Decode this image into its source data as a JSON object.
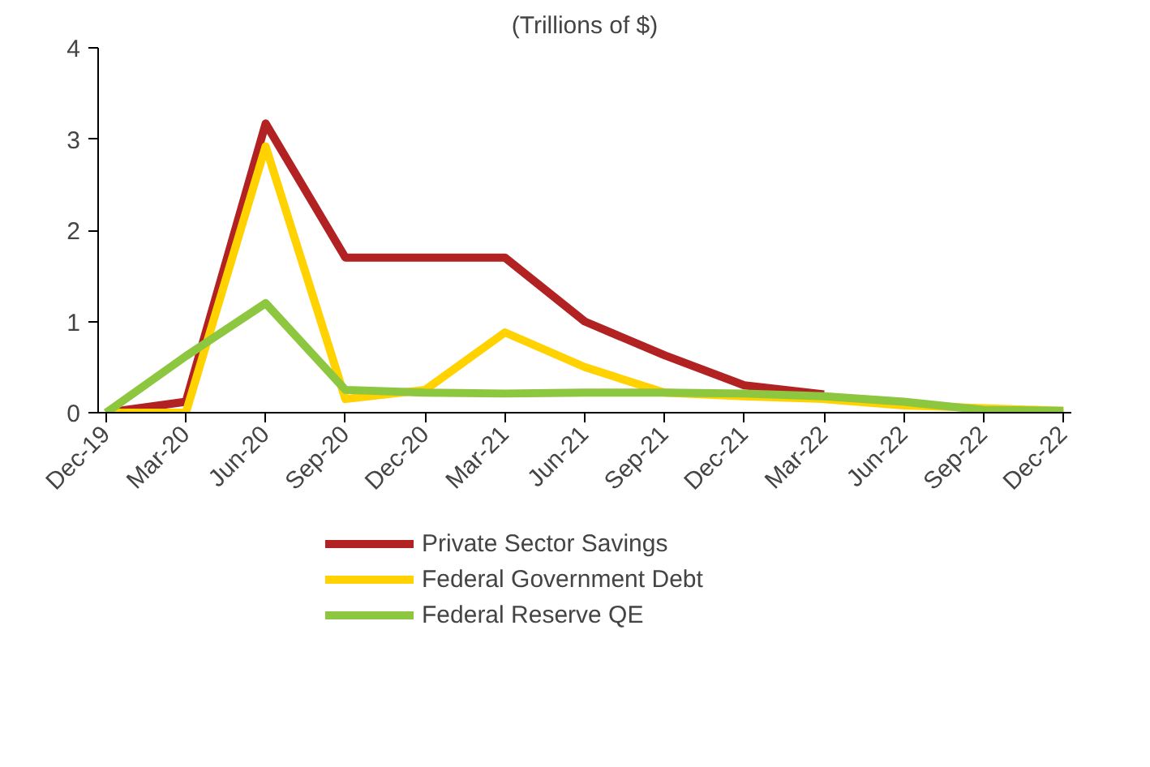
{
  "chart_data": {
    "type": "line",
    "subtitle": "(Trillions of $)",
    "categories": [
      "Dec-19",
      "Mar-20",
      "Jun-20",
      "Sep-20",
      "Dec-20",
      "Mar-21",
      "Jun-21",
      "Sep-21",
      "Dec-21",
      "Mar-22",
      "Jun-22",
      "Sep-22",
      "Dec-22"
    ],
    "series": [
      {
        "name": "Private Sector Savings",
        "color": "#b22222",
        "values": [
          0,
          0.12,
          3.17,
          1.7,
          1.7,
          1.7,
          1.0,
          0.63,
          0.3,
          0.2,
          null,
          0.0,
          0.0
        ]
      },
      {
        "name": "Federal Government Debt",
        "color": "#ffd200",
        "values": [
          0,
          0,
          2.92,
          0.15,
          0.25,
          0.88,
          0.5,
          0.22,
          0.18,
          0.15,
          0.08,
          0.05,
          0.02
        ]
      },
      {
        "name": "Federal Reserve QE",
        "color": "#8dc63f",
        "values": [
          0,
          0.62,
          1.2,
          0.25,
          0.22,
          0.21,
          0.22,
          0.22,
          0.21,
          0.18,
          0.12,
          0.03,
          0.02
        ]
      }
    ],
    "ylim": [
      0,
      4
    ],
    "yticks": [
      0,
      1,
      2,
      3,
      4
    ],
    "grid": false,
    "legend": "bottom",
    "marker": "none",
    "line_style": "solid"
  }
}
